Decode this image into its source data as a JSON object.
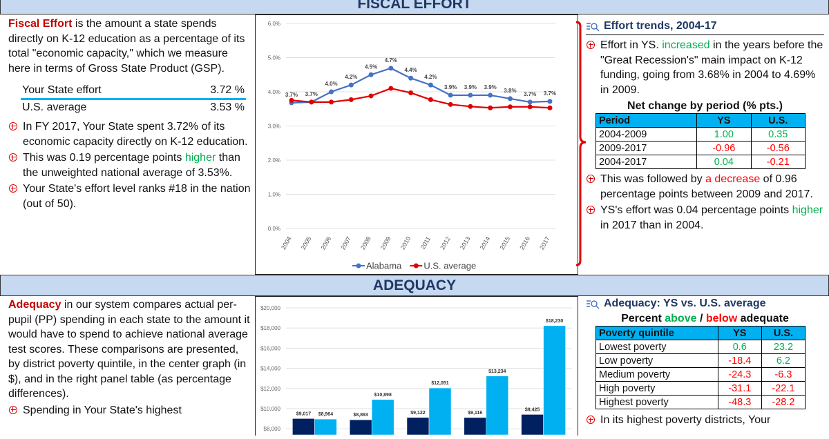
{
  "fiscal_effort": {
    "header": "FISCAL EFFORT",
    "intro": {
      "term": "Fiscal Effort",
      "text": " is the amount a state spends directly on K-12 education as a percentage of its total \"economic capacity,\" which we measure here in terms of Gross State Product (GSP)."
    },
    "summary": [
      [
        "Your State effort",
        "3.72 %"
      ],
      [
        "U.S. average",
        "3.53 %"
      ]
    ],
    "bullets": [
      [
        "In FY 2017, Your State spent 3.72% of its economic capacity directly on K-12 education."
      ],
      [
        "This was 0.19 percentage points ",
        {
          "text": "higher",
          "color": "#00b050"
        },
        " than the unweighted national average of 3.53%."
      ],
      [
        "Your State's effort level ranks #18 in the nation (out of 50)."
      ]
    ],
    "trends": {
      "title": "Effort trends, 2004-17",
      "bullets_before": [
        [
          "Effort in YS. ",
          {
            "text": "increased",
            "color": "#00b050"
          },
          " in the years before the \"Great Recession's\" main impact on K-12 funding, going from 3.68% in 2004 to 4.69% in 2009."
        ]
      ],
      "table": {
        "title": "Net change by period (% pts.)",
        "columns": [
          "Period",
          "YS",
          "U.S."
        ],
        "rows": [
          [
            "2004-2009",
            "1.00",
            "0.35"
          ],
          [
            "2009-2017",
            "-0.96",
            "-0.56"
          ],
          [
            "2004-2017",
            "0.04",
            "-0.21"
          ]
        ]
      },
      "bullets_after": [
        [
          "This was followed by ",
          {
            "text": "a decrease",
            "color": "#ff0000"
          },
          " of 0.96 percentage points between 2009 and 2017."
        ],
        [
          "YS's effort was 0.04 percentage points ",
          {
            "text": "higher",
            "color": "#00b050"
          },
          " in 2017 than in 2004."
        ]
      ]
    }
  },
  "adequacy": {
    "header": "ADEQUACY",
    "intro": {
      "term": "Adequacy",
      "text": " in our system compares actual per-pupil (PP) spending in each state to the amount it would have to spend to achieve national average test scores. These comparisons are presented, by district poverty quintile, in the center graph (in $), and in the right panel table (as percentage differences)."
    },
    "bullets": [
      [
        "Spending in Your State's  highest"
      ]
    ],
    "panel": {
      "title": "Adequacy: YS vs. U.S. average",
      "table": {
        "title": [
          "Percent ",
          {
            "text": "above",
            "color": "#00b050"
          },
          " / ",
          {
            "text": "below",
            "color": "#ff0000"
          },
          " adequate"
        ],
        "columns": [
          "Poverty quintile",
          "YS",
          "U.S."
        ],
        "rows": [
          [
            "Lowest poverty",
            "0.6",
            "23.2"
          ],
          [
            "Low poverty",
            "-18.4",
            "6.2"
          ],
          [
            "Medium poverty",
            "-24.3",
            "-6.3"
          ],
          [
            "High poverty",
            "-31.1",
            "-22.1"
          ],
          [
            "Highest poverty",
            "-48.3",
            "-28.2"
          ]
        ]
      },
      "bullets": [
        [
          "In its highest poverty districts, Your"
        ]
      ]
    }
  },
  "chart_data": [
    {
      "type": "line",
      "categories": [
        "2004",
        "2005",
        "2006",
        "2007",
        "2008",
        "2009",
        "2010",
        "2011",
        "2012",
        "2013",
        "2014",
        "2015",
        "2016",
        "2017"
      ],
      "series": [
        {
          "name": "Alabama",
          "color": "#4472c4",
          "values": [
            3.68,
            3.7,
            4.0,
            4.2,
            4.5,
            4.69,
            4.4,
            4.2,
            3.9,
            3.9,
            3.9,
            3.8,
            3.7,
            3.72
          ],
          "value_labels": [
            "3.7%",
            "3.7%",
            "4.0%",
            "4.2%",
            "4.5%",
            "4.7%",
            "4.4%",
            "4.2%",
            "3.9%",
            "3.9%",
            "3.9%",
            "3.8%",
            "3.7%",
            "3.7%"
          ]
        },
        {
          "name": "U.S. average",
          "color": "#e00000",
          "values": [
            3.75,
            3.7,
            3.7,
            3.77,
            3.88,
            4.1,
            3.97,
            3.77,
            3.63,
            3.57,
            3.53,
            3.56,
            3.56,
            3.53
          ]
        }
      ],
      "ylim": [
        0,
        6
      ],
      "yticks": [
        {
          "value": 0,
          "label": "0.0%"
        },
        {
          "value": 1,
          "label": "1.0%"
        },
        {
          "value": 2,
          "label": "2.0%"
        },
        {
          "value": 3,
          "label": "3.0%"
        },
        {
          "value": 4,
          "label": "4.0%"
        },
        {
          "value": 5,
          "label": "5.0%"
        },
        {
          "value": 6,
          "label": "6.0%"
        }
      ],
      "grid": true,
      "legend": "bottom"
    },
    {
      "type": "bar",
      "categories": [
        null,
        null,
        null,
        null,
        null
      ],
      "series": [
        {
          "color": "#002060",
          "values": [
            9017,
            8893,
            9122,
            9116,
            9425
          ],
          "value_labels": [
            "$9,017",
            "$8,893",
            "$9,122",
            "$9,116",
            "$9,425"
          ]
        },
        {
          "color": "#00b0f0",
          "values": [
            8964,
            10898,
            12051,
            13234,
            18230
          ],
          "value_labels": [
            "$8,964",
            "$10,898",
            "$12,051",
            "$13,234",
            "$18,230"
          ]
        }
      ],
      "ylim": [
        7400,
        20000
      ],
      "yticks": [
        {
          "value": 8000,
          "label": "$8,000"
        },
        {
          "value": 10000,
          "label": "$10,000"
        },
        {
          "value": 12000,
          "label": "$12,000"
        },
        {
          "value": 14000,
          "label": "$14,000"
        },
        {
          "value": 16000,
          "label": "$16,000"
        },
        {
          "value": 18000,
          "label": "$18,000"
        },
        {
          "value": 20000,
          "label": "$20,000"
        }
      ],
      "grid": true
    }
  ]
}
